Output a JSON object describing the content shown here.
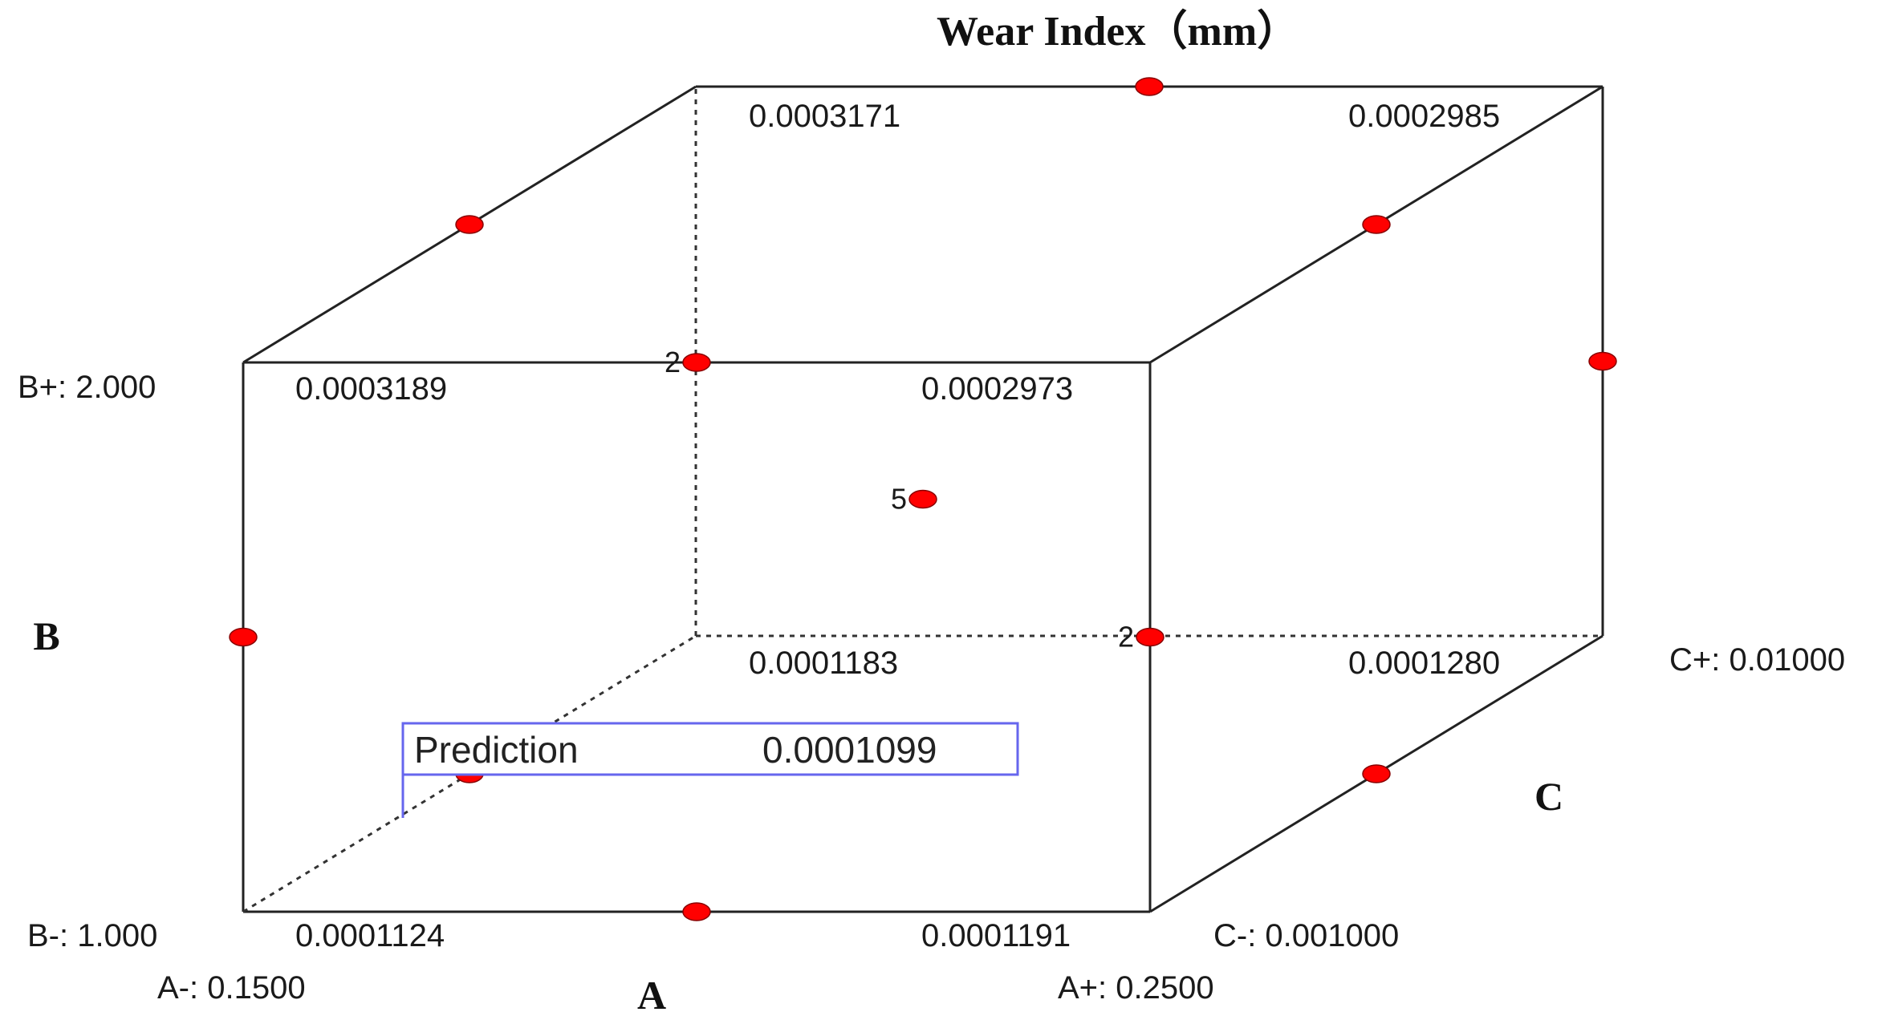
{
  "chart_data": {
    "type": "cube",
    "title": "Wear Index（mm）",
    "factors": {
      "A": {
        "label": "A",
        "low": "A-: 0.1500",
        "high": "A+: 0.2500"
      },
      "B": {
        "label": "B",
        "low": "B-: 1.000",
        "high": "B+: 2.000"
      },
      "C": {
        "label": "C",
        "low": "C-: 0.001000",
        "high": "C+: 0.01000"
      }
    },
    "corners": [
      {
        "A": "-",
        "B": "-",
        "C": "-",
        "value": "0.0001124"
      },
      {
        "A": "+",
        "B": "-",
        "C": "-",
        "value": "0.0001191"
      },
      {
        "A": "-",
        "B": "+",
        "C": "-",
        "value": "0.0003189"
      },
      {
        "A": "+",
        "B": "+",
        "C": "-",
        "value": "0.0002973"
      },
      {
        "A": "-",
        "B": "-",
        "C": "+",
        "value": "0.0001183"
      },
      {
        "A": "+",
        "B": "-",
        "C": "+",
        "value": "0.0001280"
      },
      {
        "A": "-",
        "B": "+",
        "C": "+",
        "value": "0.0003171"
      },
      {
        "A": "+",
        "B": "+",
        "C": "+",
        "value": "0.0002985"
      }
    ],
    "design_points": [
      {
        "A": "0",
        "B": "-",
        "C": "-",
        "count": ""
      },
      {
        "A": "-",
        "B": "0",
        "C": "-",
        "count": ""
      },
      {
        "A": "-",
        "B": "+",
        "C": "0",
        "count": ""
      },
      {
        "A": "0",
        "B": "+",
        "C": "+",
        "count": ""
      },
      {
        "A": "+",
        "B": "+",
        "C": "0",
        "count": ""
      },
      {
        "A": "+",
        "B": "0",
        "C": "+",
        "count": ""
      },
      {
        "A": "+",
        "B": "-",
        "C": "0",
        "count": ""
      },
      {
        "A": "0",
        "B": "+",
        "C": "-",
        "count": "2"
      },
      {
        "A": "+",
        "B": "0",
        "C": "-",
        "count": "2"
      },
      {
        "A": "0",
        "B": "0",
        "C": "0",
        "count": "5"
      },
      {
        "A": "-",
        "B": "-",
        "C": "0",
        "count": ""
      }
    ],
    "prediction": {
      "label": "Prediction",
      "value": "0.0001099"
    }
  },
  "colors": {
    "point": "#ff0000",
    "prediction_border": "#6666ee",
    "edge": "#222222"
  }
}
